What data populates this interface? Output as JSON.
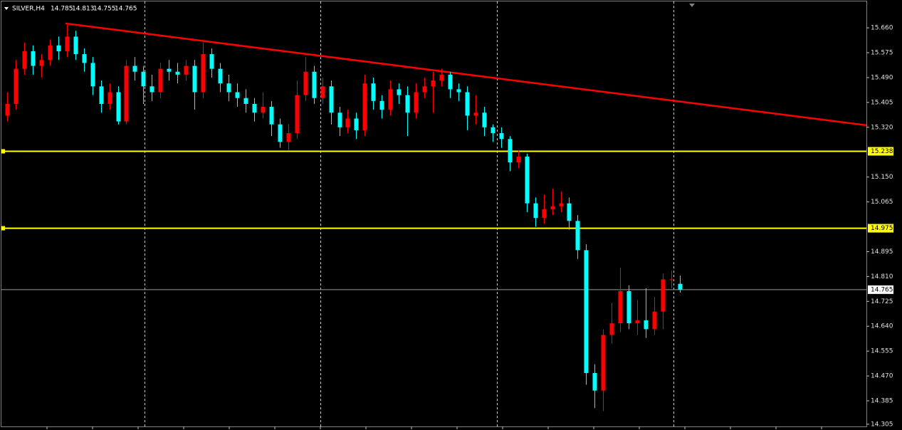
{
  "chart_data": {
    "type": "candlestick",
    "symbol": "SILVER,H4",
    "ohlc": [
      14.785,
      14.813,
      14.755,
      14.765
    ],
    "up_color": "#ff0000",
    "down_color": "#00ffff",
    "ylim": [
      14.295,
      15.743
    ],
    "yticks": [
      {
        "value": 15.66,
        "label": "15.660"
      },
      15.575,
      {
        "value": 15.49,
        "label": "15.490"
      },
      15.405,
      {
        "value": 15.32,
        "label": "15.320"
      },
      {
        "value": 15.15,
        "label": "15.150"
      },
      15.065,
      14.895,
      {
        "value": 14.81,
        "label": "14.810"
      },
      14.725,
      {
        "value": 14.64,
        "label": "14.640"
      },
      14.555,
      {
        "value": 14.47,
        "label": "14.470"
      },
      14.385,
      14.305
    ],
    "levels": [
      15.238,
      14.975
    ],
    "level_color": "#ffff00",
    "current_price": 14.765,
    "trendline": [
      15.675,
      15.327
    ],
    "trendline_color": "#ff0000",
    "candles": [
      [
        15.36,
        15.44,
        15.34,
        15.4
      ],
      [
        15.4,
        15.55,
        15.38,
        15.52
      ],
      [
        15.52,
        15.61,
        15.5,
        15.58
      ],
      [
        15.58,
        15.6,
        15.5,
        15.53
      ],
      [
        15.53,
        15.57,
        15.49,
        15.55
      ],
      [
        15.55,
        15.62,
        15.53,
        15.6
      ],
      [
        15.6,
        15.63,
        15.55,
        15.58
      ],
      [
        15.58,
        15.67,
        15.56,
        15.63
      ],
      [
        15.63,
        15.65,
        15.55,
        15.57
      ],
      [
        15.57,
        15.59,
        15.51,
        15.54
      ],
      [
        15.54,
        15.56,
        15.43,
        15.46
      ],
      [
        15.46,
        15.48,
        15.37,
        15.4
      ],
      [
        15.4,
        15.47,
        15.38,
        15.44
      ],
      [
        15.44,
        15.46,
        15.33,
        15.34
      ],
      [
        15.34,
        15.55,
        15.33,
        15.53
      ],
      [
        15.53,
        15.56,
        15.48,
        15.51
      ],
      [
        15.51,
        15.53,
        15.4,
        15.46
      ],
      [
        15.46,
        15.5,
        15.41,
        15.44
      ],
      [
        15.44,
        15.54,
        15.42,
        15.52
      ],
      [
        15.52,
        15.55,
        15.48,
        15.51
      ],
      [
        15.51,
        15.54,
        15.47,
        15.5
      ],
      [
        15.5,
        15.55,
        15.48,
        15.53
      ],
      [
        15.53,
        15.55,
        15.38,
        15.44
      ],
      [
        15.44,
        15.61,
        15.42,
        15.57
      ],
      [
        15.57,
        15.59,
        15.49,
        15.52
      ],
      [
        15.52,
        15.54,
        15.44,
        15.47
      ],
      [
        15.47,
        15.5,
        15.41,
        15.44
      ],
      [
        15.44,
        15.47,
        15.39,
        15.42
      ],
      [
        15.42,
        15.45,
        15.37,
        15.4
      ],
      [
        15.4,
        15.42,
        15.34,
        15.37
      ],
      [
        15.37,
        15.44,
        15.35,
        15.39
      ],
      [
        15.39,
        15.41,
        15.29,
        15.33
      ],
      [
        15.33,
        15.35,
        15.25,
        15.27
      ],
      [
        15.27,
        15.33,
        15.24,
        15.3
      ],
      [
        15.3,
        15.48,
        15.28,
        15.43
      ],
      [
        15.43,
        15.56,
        15.41,
        15.51
      ],
      [
        15.51,
        15.53,
        15.4,
        15.42
      ],
      [
        15.42,
        15.49,
        15.4,
        15.46
      ],
      [
        15.46,
        15.48,
        15.33,
        15.37
      ],
      [
        15.37,
        15.39,
        15.29,
        15.32
      ],
      [
        15.32,
        15.38,
        15.3,
        15.35
      ],
      [
        15.35,
        15.37,
        15.28,
        15.31
      ],
      [
        15.31,
        15.5,
        15.29,
        15.47
      ],
      [
        15.47,
        15.49,
        15.38,
        15.41
      ],
      [
        15.41,
        15.43,
        15.35,
        15.38
      ],
      [
        15.38,
        15.48,
        15.36,
        15.45
      ],
      [
        15.45,
        15.47,
        15.4,
        15.43
      ],
      [
        15.43,
        15.46,
        15.29,
        15.37
      ],
      [
        15.37,
        15.47,
        15.35,
        15.44
      ],
      [
        15.44,
        15.49,
        15.42,
        15.46
      ],
      [
        15.46,
        15.51,
        15.37,
        15.48
      ],
      [
        15.48,
        15.52,
        15.46,
        15.5
      ],
      [
        15.5,
        15.51,
        15.42,
        15.45
      ],
      [
        15.45,
        15.47,
        15.41,
        15.44
      ],
      [
        15.44,
        15.46,
        15.31,
        15.36
      ],
      [
        15.36,
        15.43,
        15.33,
        15.37
      ],
      [
        15.37,
        15.39,
        15.29,
        15.32
      ],
      [
        15.32,
        15.33,
        15.27,
        15.3
      ],
      [
        15.3,
        15.32,
        15.25,
        15.28
      ],
      [
        15.28,
        15.29,
        15.17,
        15.2
      ],
      [
        15.2,
        15.24,
        15.18,
        15.22
      ],
      [
        15.22,
        15.23,
        15.03,
        15.06
      ],
      [
        15.06,
        15.08,
        14.98,
        15.01
      ],
      [
        15.01,
        15.09,
        14.99,
        15.04
      ],
      [
        15.04,
        15.11,
        15.02,
        15.05
      ],
      [
        15.05,
        15.1,
        15.03,
        15.06
      ],
      [
        15.06,
        15.08,
        14.97,
        15.0
      ],
      [
        15.0,
        15.02,
        14.87,
        14.9
      ],
      [
        14.9,
        14.92,
        14.44,
        14.48
      ],
      [
        14.48,
        14.51,
        14.36,
        14.42
      ],
      [
        14.42,
        14.63,
        14.35,
        14.61
      ],
      [
        14.61,
        14.72,
        14.58,
        14.65
      ],
      [
        14.65,
        14.84,
        14.62,
        14.76
      ],
      [
        14.76,
        14.78,
        14.63,
        14.65
      ],
      [
        14.65,
        14.73,
        14.61,
        14.66
      ],
      [
        14.66,
        14.77,
        14.6,
        14.63
      ],
      [
        14.63,
        14.74,
        14.61,
        14.69
      ],
      [
        14.69,
        14.82,
        14.63,
        14.8
      ],
      [
        14.8,
        14.83,
        14.77,
        14.8
      ],
      [
        14.785,
        14.813,
        14.755,
        14.765
      ]
    ]
  }
}
